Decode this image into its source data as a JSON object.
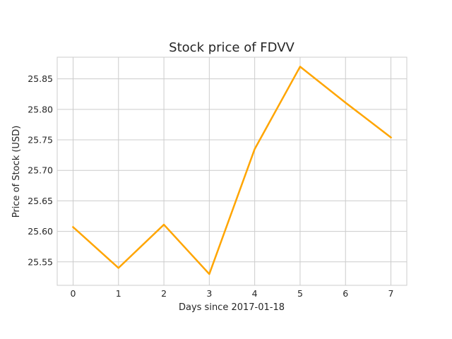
{
  "chart_data": {
    "type": "line",
    "title": "Stock price of FDVV",
    "xlabel": "Days since 2017-01-18",
    "ylabel": "Price of Stock (USD)",
    "x": [
      0,
      1,
      2,
      3,
      4,
      5,
      6,
      7
    ],
    "x_tick_labels": [
      "0",
      "1",
      "2",
      "3",
      "4",
      "5",
      "6",
      "7"
    ],
    "y_ticks": [
      25.55,
      25.6,
      25.65,
      25.7,
      25.75,
      25.8,
      25.85
    ],
    "y_tick_labels": [
      "25.55",
      "25.60",
      "25.65",
      "25.70",
      "25.75",
      "25.80",
      "25.85"
    ],
    "xlim": [
      -0.35,
      7.35
    ],
    "ylim": [
      25.5115,
      25.8855
    ],
    "grid": true,
    "series": [
      {
        "values": [
          25.607,
          25.54,
          25.611,
          25.53,
          25.735,
          25.87,
          25.811,
          25.754
        ],
        "color": "#FFA500"
      }
    ],
    "colors": {
      "grid": "#cccccc",
      "frame": "#cccccc",
      "text": "#262626"
    }
  }
}
